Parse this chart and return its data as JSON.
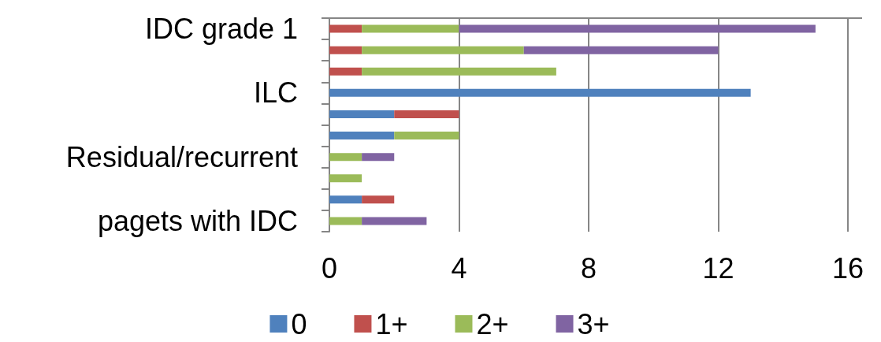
{
  "chart_data": {
    "type": "bar",
    "orientation": "horizontal",
    "stacked": true,
    "categories": [
      "IDC grade 1",
      null,
      null,
      "ILC",
      null,
      null,
      "Residual/recurrent",
      null,
      null,
      "pagets with IDC"
    ],
    "series": [
      {
        "name": "0",
        "color": "#4f81bd",
        "values": [
          0,
          0,
          0,
          13,
          2,
          2,
          0,
          0,
          1,
          0
        ]
      },
      {
        "name": "1+",
        "color": "#c0504d",
        "values": [
          1,
          1,
          1,
          0,
          2,
          0,
          0,
          0,
          1,
          0
        ]
      },
      {
        "name": "2+",
        "color": "#9bbb59",
        "values": [
          3,
          5,
          6,
          0,
          0,
          2,
          1,
          1,
          0,
          1
        ]
      },
      {
        "name": "3+",
        "color": "#8064a2",
        "values": [
          11,
          6,
          0,
          0,
          0,
          0,
          1,
          0,
          0,
          2
        ]
      }
    ],
    "xlim": [
      0,
      16
    ],
    "xticks": [
      0,
      4,
      8,
      12,
      16
    ],
    "grid": "x",
    "legend": "bottom"
  }
}
